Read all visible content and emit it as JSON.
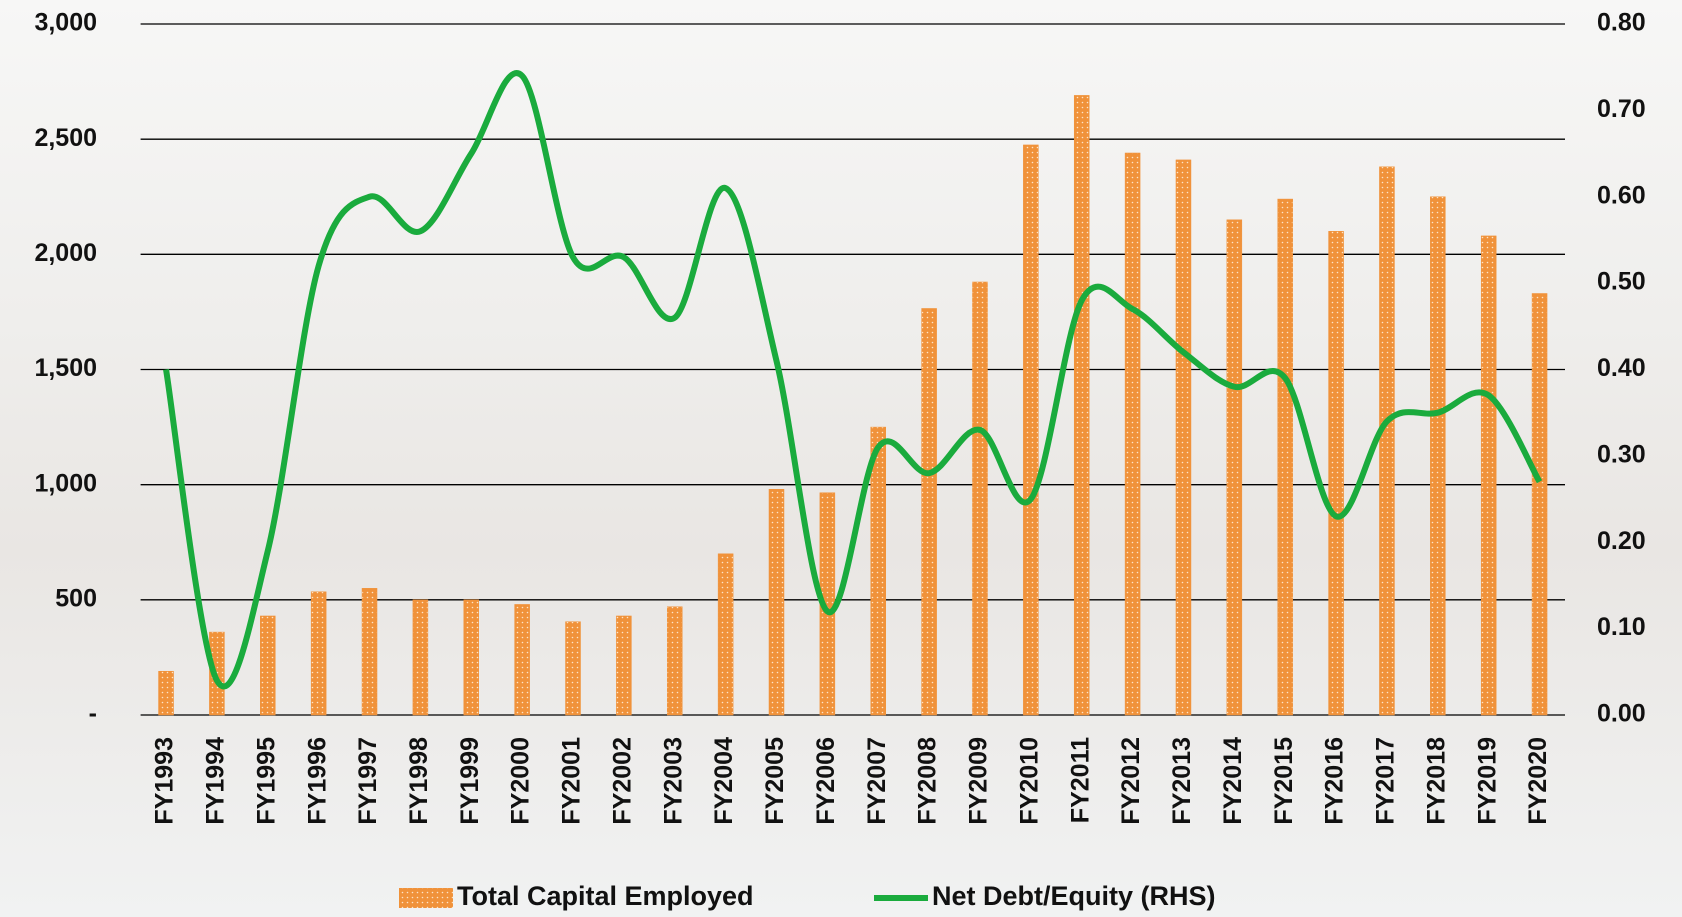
{
  "chart_data": {
    "type": "bar",
    "categories": [
      "FY1993",
      "FY1994",
      "FY1995",
      "FY1996",
      "FY1997",
      "FY1998",
      "FY1999",
      "FY2000",
      "FY2001",
      "FY2002",
      "FY2003",
      "FY2004",
      "FY2005",
      "FY2006",
      "FY2007",
      "FY2008",
      "FY2009",
      "FY2010",
      "FY2011",
      "FY2012",
      "FY2013",
      "FY2014",
      "FY2015",
      "FY2016",
      "FY2017",
      "FY2018",
      "FY2019",
      "FY2020"
    ],
    "series": [
      {
        "name": "Total Capital Employed",
        "type": "bar",
        "color": "#f0923a",
        "values": [
          190,
          360,
          430,
          535,
          550,
          500,
          500,
          480,
          405,
          430,
          470,
          700,
          980,
          965,
          1250,
          1765,
          1880,
          2475,
          2690,
          2440,
          2410,
          2150,
          2240,
          2100,
          2380,
          2250,
          2080,
          1830
        ]
      },
      {
        "name": "Net Debt/Equity (RHS)",
        "type": "line",
        "axis": "y2",
        "color": "#1aab3d",
        "values": [
          0.4,
          0.04,
          0.19,
          0.52,
          0.6,
          0.56,
          0.65,
          0.74,
          0.53,
          0.53,
          0.46,
          0.61,
          0.41,
          0.12,
          0.31,
          0.28,
          0.33,
          0.25,
          0.48,
          0.47,
          0.42,
          0.38,
          0.39,
          0.23,
          0.34,
          0.35,
          0.37,
          0.27
        ]
      }
    ],
    "ylim": [
      0,
      3000
    ],
    "yticks": [
      {
        "value": 0,
        "label": "-"
      },
      500,
      {
        "value": 1000,
        "label": "1,000"
      },
      {
        "value": 1500,
        "label": "1,500"
      },
      {
        "value": 2000,
        "label": "2,000"
      },
      {
        "value": 2500,
        "label": "2,500"
      },
      {
        "value": 3000,
        "label": "3,000"
      }
    ],
    "y2lim": [
      0,
      0.8
    ],
    "y2ticks": [
      {
        "value": 0,
        "label": "0.00"
      },
      {
        "value": 0.1,
        "label": "0.10"
      },
      {
        "value": 0.2,
        "label": "0.20"
      },
      {
        "value": 0.3,
        "label": "0.30"
      },
      {
        "value": 0.4,
        "label": "0.40"
      },
      {
        "value": 0.5,
        "label": "0.50"
      },
      {
        "value": 0.6,
        "label": "0.60"
      },
      {
        "value": 0.7,
        "label": "0.70"
      },
      {
        "value": 0.8,
        "label": "0.80"
      }
    ],
    "grid": true,
    "legend": "bottom"
  }
}
